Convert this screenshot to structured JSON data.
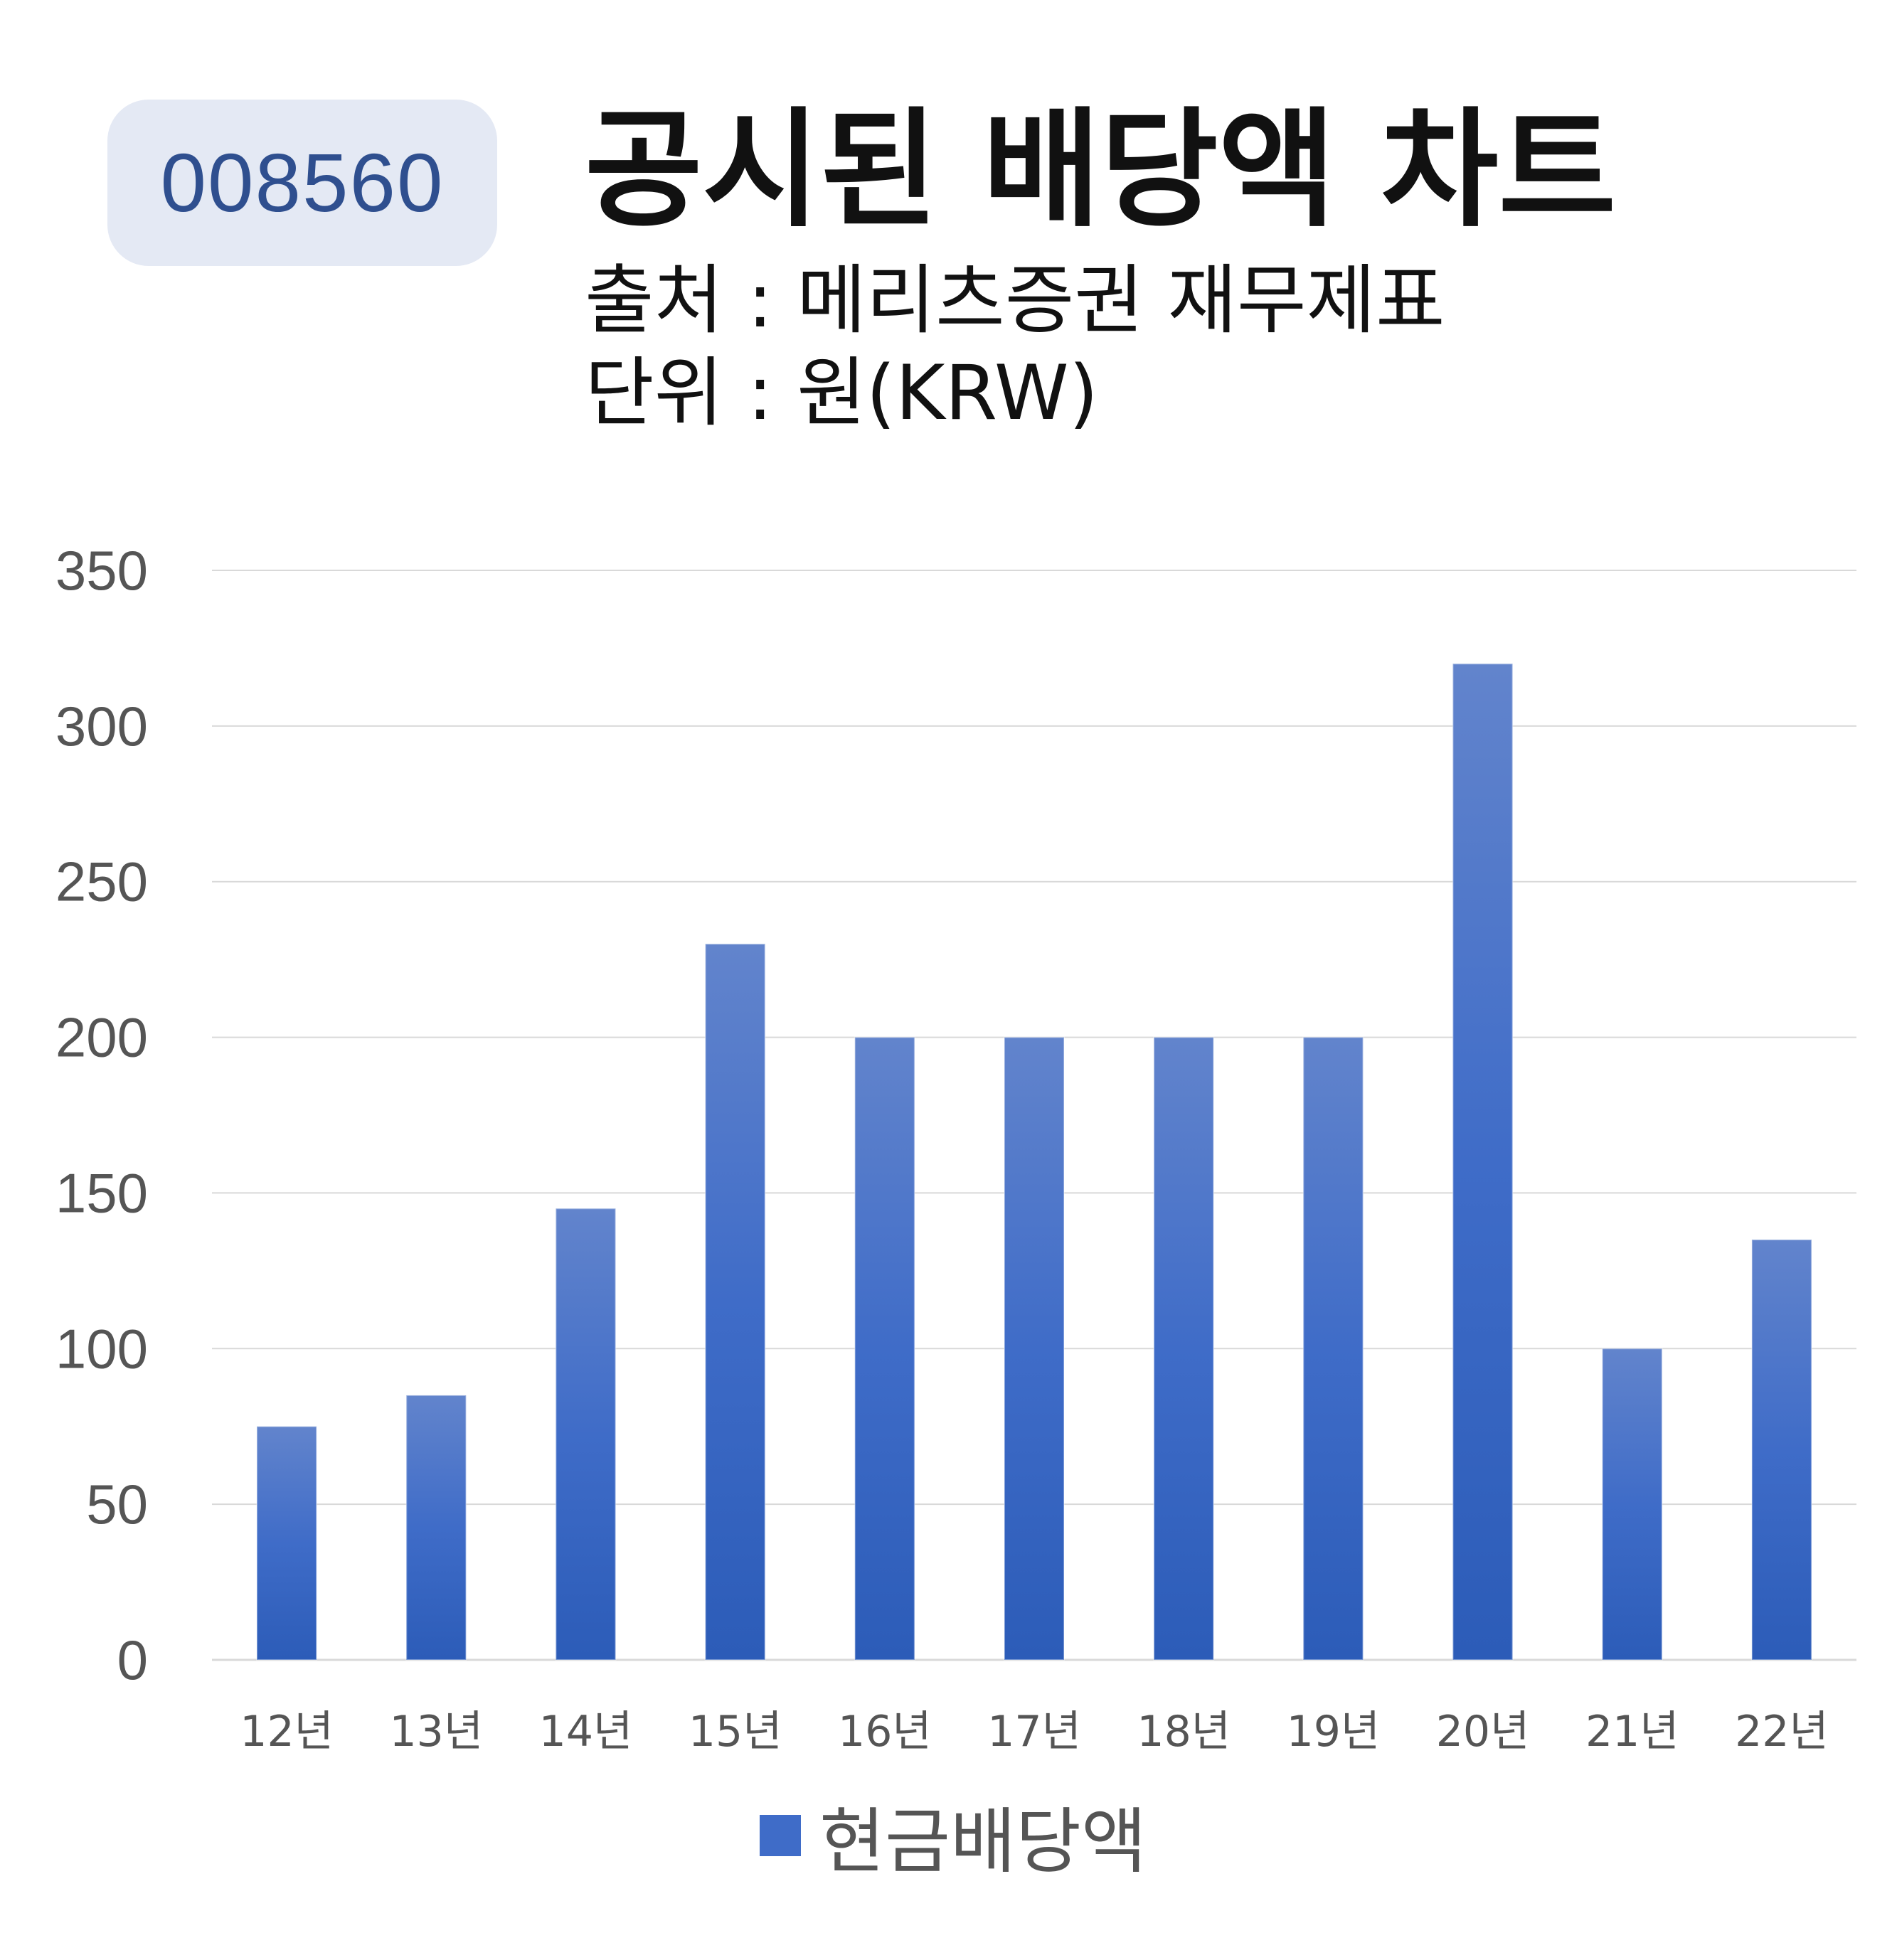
{
  "header": {
    "stock_code": "008560",
    "title": "공시된 배당액 차트",
    "source_line": "출처 : 메리츠증권 재무제표",
    "unit_line": "단위 : 원(KRW)"
  },
  "chart_data": {
    "type": "bar",
    "categories": [
      "12년",
      "13년",
      "14년",
      "15년",
      "16년",
      "17년",
      "18년",
      "19년",
      "20년",
      "21년",
      "22년"
    ],
    "series": [
      {
        "name": "현금배당액",
        "values": [
          75,
          85,
          145,
          230,
          200,
          200,
          200,
          200,
          320,
          100,
          135
        ]
      }
    ],
    "yticks": [
      "0",
      "50",
      "100",
      "150",
      "200",
      "250",
      "300",
      "350"
    ],
    "ylim": [
      0,
      350
    ],
    "grid": true,
    "legend_position": "bottom",
    "bar_color": "#3f6cc8",
    "bar_color_top": "#6284cc",
    "bar_color_bottom": "#2c5cb8",
    "grid_color": "#d9d9d9"
  }
}
